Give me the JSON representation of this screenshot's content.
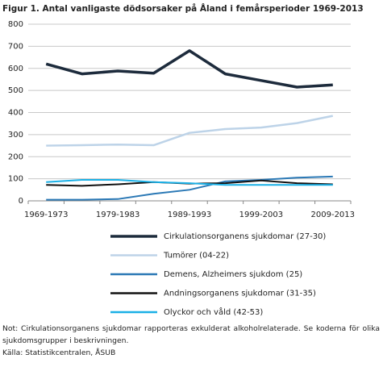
{
  "chart_data": {
    "type": "line",
    "title": "Figur 1. Antal vanligaste dödsorsaker på Åland i femårsperioder 1969-2013",
    "categories": [
      "1969-1973",
      null,
      "1979-1983",
      null,
      "1989-1993",
      null,
      "1999-2003",
      null,
      "2009-2013"
    ],
    "series": [
      {
        "name": "Cirkulationsorganens sjukdomar (27-30)",
        "color": "#1d2b3c",
        "values": [
          620,
          575,
          588,
          578,
          680,
          575,
          545,
          515,
          525
        ]
      },
      {
        "name": "Tumörer (04-22)",
        "color": "#bdd3e8",
        "values": [
          250,
          252,
          255,
          252,
          308,
          325,
          332,
          352,
          385
        ]
      },
      {
        "name": "Demens, Alzheimers sjukdom (25)",
        "color": "#2a78b5",
        "values": [
          5,
          5,
          8,
          32,
          50,
          88,
          95,
          105,
          110
        ]
      },
      {
        "name": "Andningsorganens sjukdomar (31-35)",
        "color": "#111111",
        "values": [
          72,
          68,
          75,
          85,
          78,
          80,
          92,
          80,
          75
        ]
      },
      {
        "name": "Olyckor och våld (42-53)",
        "color": "#1bb0e6",
        "values": [
          85,
          95,
          95,
          85,
          80,
          72,
          72,
          72,
          72
        ]
      }
    ],
    "ylim": [
      0,
      800
    ],
    "yticks": [
      0,
      100,
      200,
      300,
      400,
      500,
      600,
      700,
      800
    ],
    "grid": true
  },
  "note": "Not: Cirkulationsorganens sjukdomar rapporteras exkulderat alkoholrelaterade. Se koderna för olika sjukdomsgrupper i beskrivningen.",
  "source": "Källa: Statistikcentralen, ÅSUB"
}
